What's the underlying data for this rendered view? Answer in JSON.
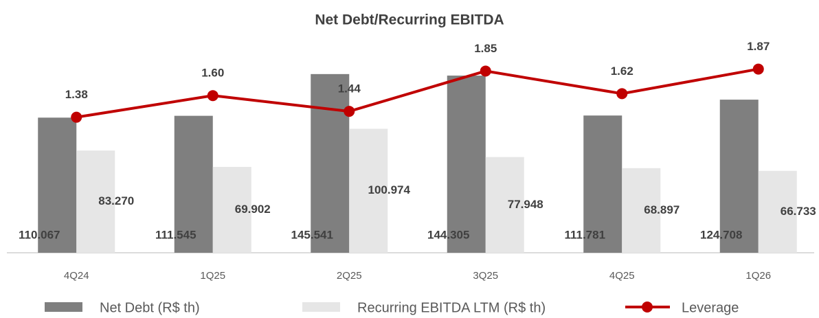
{
  "chart_data": {
    "type": "bar_line",
    "title": "Net Debt/Recurring EBITDA",
    "categories": [
      "4Q24",
      "1Q25",
      "2Q25",
      "3Q25",
      "4Q25",
      "1Q26"
    ],
    "series": [
      {
        "name": "Net Debt (R$ th)",
        "color": "#7f7f7f",
        "type": "bar",
        "values": [
          110067,
          111545,
          145541,
          144305,
          111781,
          124708
        ],
        "value_labels": [
          "110.067",
          "111.545",
          "145.541",
          "144.305",
          "111.781",
          "124.708"
        ]
      },
      {
        "name": "Recurring EBITDA LTM (R$ th)",
        "color": "#e6e6e6",
        "type": "bar",
        "values": [
          83270,
          69902,
          100974,
          77948,
          68897,
          66733
        ],
        "value_labels": [
          "83.270",
          "69.902",
          "100.974",
          "77.948",
          "68.897",
          "66.733"
        ]
      },
      {
        "name": "Leverage",
        "color": "#c00000",
        "type": "line",
        "axis": "y2",
        "values": [
          1.38,
          1.6,
          1.44,
          1.85,
          1.62,
          1.87
        ],
        "value_labels": [
          "1.38",
          "1.60",
          "1.44",
          "1.85",
          "1.62",
          "1.87"
        ]
      }
    ],
    "ylim": [
      0,
      160000
    ],
    "y2lim": [
      0,
      2
    ],
    "legend": "bottom"
  }
}
